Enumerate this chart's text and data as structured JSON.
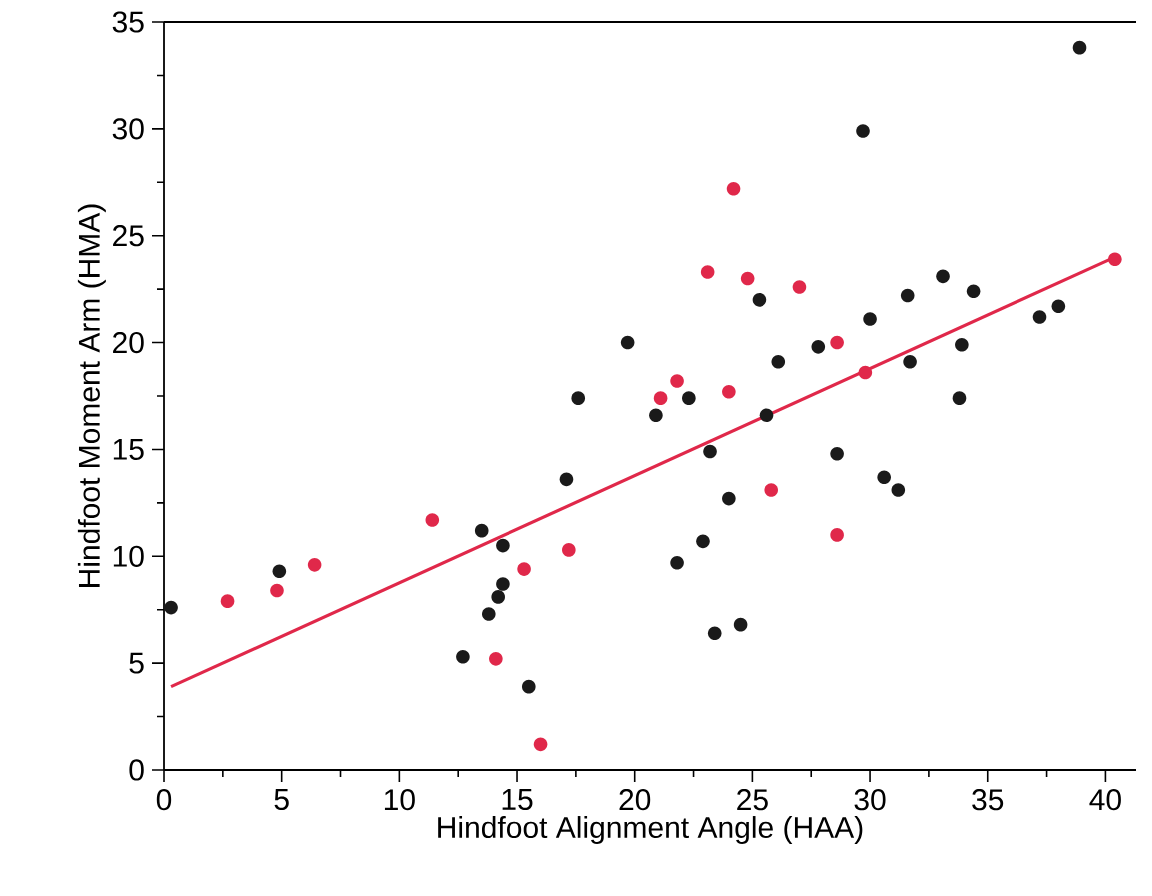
{
  "chart_data": {
    "type": "scatter",
    "xlabel": "Hindfoot Alignment Angle (HAA)",
    "ylabel": "Hindfoot Moment Arm (HMA)",
    "xlim": [
      0,
      41.3
    ],
    "ylim": [
      0,
      35
    ],
    "xticks": [
      0,
      5,
      10,
      15,
      20,
      25,
      30,
      35,
      40
    ],
    "yticks": [
      0,
      5,
      10,
      15,
      20,
      25,
      30,
      35
    ],
    "grid": false,
    "marker": "circle",
    "series": [
      {
        "color": "#1a1a1a",
        "x": [
          0.3,
          4.9,
          19.7,
          17.6,
          17.1,
          13.5,
          14.4,
          14.4,
          14.2,
          13.8,
          12.7,
          15.5,
          38.9,
          29.7,
          25.3,
          30.0,
          31.6,
          33.1,
          34.4,
          37.2,
          38.0,
          33.9,
          31.7,
          27.8,
          26.1,
          22.3,
          20.9,
          25.6,
          33.8,
          23.2,
          28.6,
          24.0,
          30.6,
          31.2,
          22.9,
          21.8,
          23.4,
          24.5
        ],
        "values": [
          7.6,
          9.3,
          20.0,
          17.4,
          13.6,
          11.2,
          10.5,
          8.7,
          8.1,
          7.3,
          5.3,
          3.9,
          33.8,
          29.9,
          22.0,
          21.1,
          22.2,
          23.1,
          22.4,
          21.2,
          21.7,
          19.9,
          19.1,
          19.8,
          19.1,
          17.4,
          16.6,
          16.6,
          17.4,
          14.9,
          14.8,
          12.7,
          13.7,
          13.1,
          10.7,
          9.7,
          6.4,
          6.8
        ]
      },
      {
        "color": "#e0284a",
        "x": [
          2.7,
          4.8,
          6.4,
          11.4,
          17.2,
          15.3,
          14.1,
          16.0,
          24.2,
          23.1,
          24.8,
          27.0,
          28.6,
          29.8,
          21.8,
          21.1,
          24.0,
          25.8,
          28.6,
          40.4
        ],
        "values": [
          7.9,
          8.4,
          9.6,
          11.7,
          10.3,
          9.4,
          5.2,
          1.2,
          27.2,
          23.3,
          23.0,
          22.6,
          20.0,
          18.6,
          18.2,
          17.4,
          17.7,
          13.1,
          11.0,
          23.9
        ]
      },
      {
        "type": "line",
        "marker": "none",
        "color": "#e0284a",
        "x": [
          0.3,
          40.4
        ],
        "values": [
          3.9,
          24.0
        ]
      }
    ]
  }
}
